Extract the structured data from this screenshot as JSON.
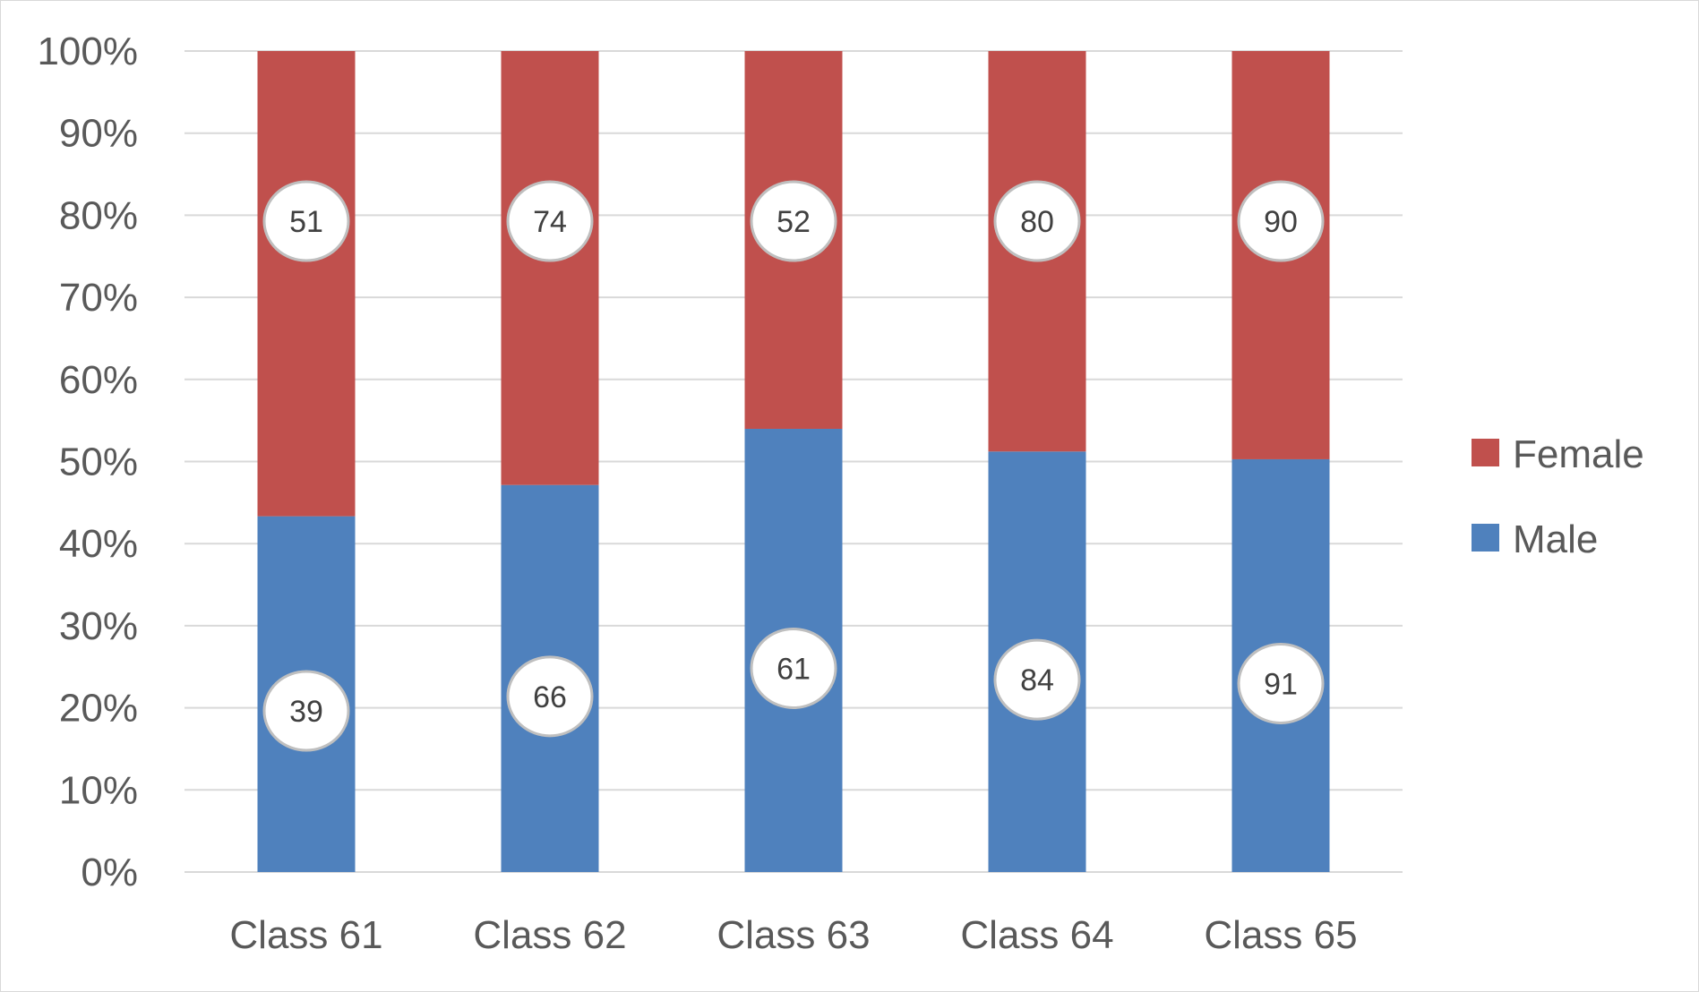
{
  "chart_data": {
    "type": "bar",
    "stacked": "percent",
    "categories": [
      "Class 61",
      "Class 62",
      "Class 63",
      "Class 64",
      "Class 65"
    ],
    "series": [
      {
        "name": "Male",
        "values": [
          39,
          66,
          61,
          84,
          91
        ],
        "color": "#4f81bd"
      },
      {
        "name": "Female",
        "values": [
          51,
          74,
          52,
          80,
          90
        ],
        "color": "#c0504d"
      }
    ],
    "y_ticks": [
      "0%",
      "10%",
      "20%",
      "30%",
      "40%",
      "50%",
      "60%",
      "70%",
      "80%",
      "90%",
      "100%"
    ],
    "ylim": [
      0,
      100
    ],
    "grid": true,
    "legend": {
      "position": "right",
      "order": [
        "Female",
        "Male"
      ]
    },
    "data_labels": "circle callouts"
  }
}
